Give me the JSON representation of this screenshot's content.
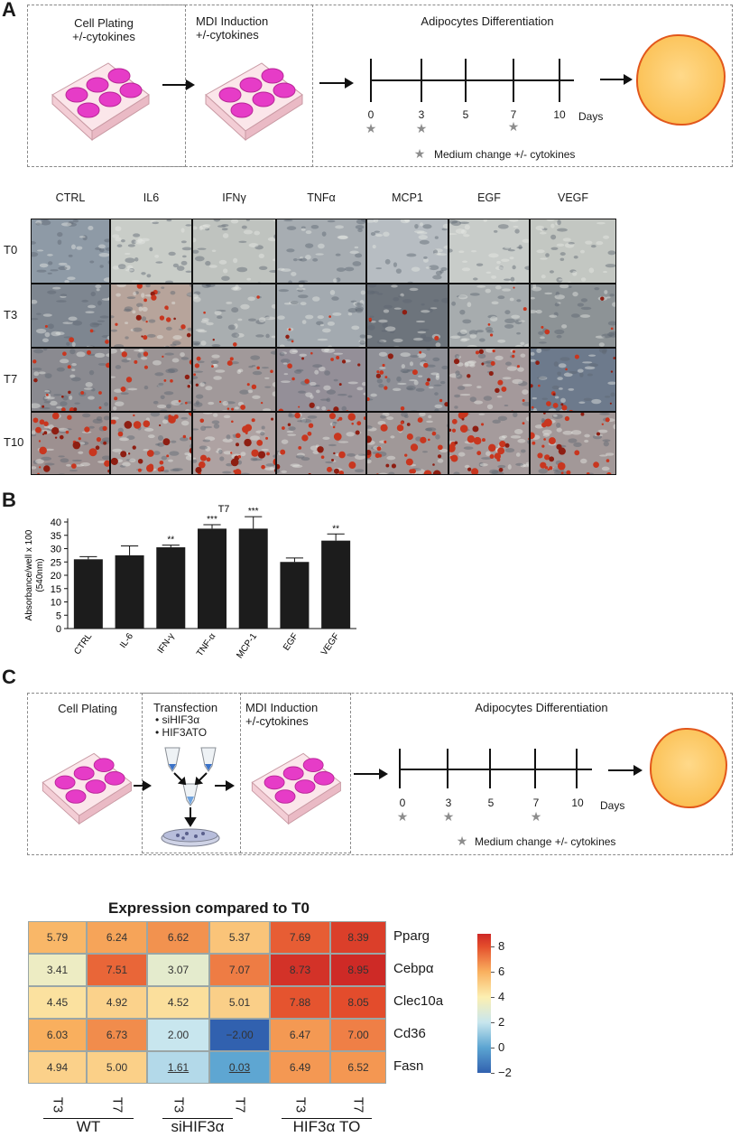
{
  "panelA": {
    "letter": "A",
    "step1": "Cell Plating\n+/-cytokines",
    "step2": "MDI Induction\n+/-cytokines",
    "step3": "Adipocytes Differentiation",
    "timeline": {
      "ticks": [
        "0",
        "3",
        "5",
        "7",
        "10"
      ],
      "unit": "Days",
      "stars_at": [
        "0",
        "3",
        "7"
      ]
    },
    "legend": "Medium change +/- cytokines",
    "columns": [
      "CTRL",
      "IL6",
      "IFNγ",
      "TNFα",
      "MCP1",
      "EGF",
      "VEGF"
    ],
    "rows": [
      "T0",
      "T3",
      "T7",
      "T10"
    ]
  },
  "panelB": {
    "letter": "B",
    "chart_data": {
      "type": "bar",
      "title": "T7",
      "ylabel": "Absorbance/well x 100\n(540nm)",
      "categories": [
        "CTRL",
        "IL-6",
        "IFN-γ",
        "TNF-α",
        "MCP-1",
        "EGF",
        "VEGF"
      ],
      "values": [
        26,
        27.5,
        30.5,
        37.5,
        37.5,
        25,
        33
      ],
      "errors": [
        1,
        3.5,
        0.8,
        1.5,
        4.5,
        1.5,
        2.5
      ],
      "significance": [
        "",
        "",
        "**",
        "***",
        "***",
        "",
        "**"
      ],
      "ylim": [
        0,
        40
      ],
      "yticks": [
        "0",
        "5",
        "10",
        "15",
        "20",
        "25",
        "30",
        "35",
        "40"
      ],
      "bar_color": "#1c1c1c"
    }
  },
  "panelC": {
    "letter": "C",
    "step1": "Cell Plating",
    "step2_title": "Transfection",
    "step2_items": [
      "siHIF3α",
      "HIF3ATO"
    ],
    "step3": "MDI Induction\n+/-cytokines",
    "step4": "Adipocytes Differentiation",
    "timeline": {
      "ticks": [
        "0",
        "3",
        "5",
        "7",
        "10"
      ],
      "unit": "Days"
    },
    "legend": "Medium change +/- cytokines"
  },
  "heatmap": {
    "title": "Expression compared to T0",
    "genes": [
      "Pparg",
      "Cebpα",
      "Clec10a",
      "Cd36",
      "Fasn"
    ],
    "columns": [
      "T3",
      "T7",
      "T3",
      "T7",
      "T3",
      "T7"
    ],
    "groups": [
      "WT",
      "siHIF3α",
      "HIF3α TO"
    ],
    "values": [
      [
        "5.79",
        "6.24",
        "6.62",
        "5.37",
        "7.69",
        "8.39"
      ],
      [
        "3.41",
        "7.51",
        "3.07",
        "7.07",
        "8.73",
        "8.95"
      ],
      [
        "4.45",
        "4.92",
        "4.52",
        "5.01",
        "7.88",
        "8.05"
      ],
      [
        "6.03",
        "6.73",
        "2.00",
        "−2.00",
        "6.47",
        "7.00"
      ],
      [
        "4.94",
        "5.00",
        "1.61",
        "0.03",
        "6.49",
        "6.52"
      ]
    ],
    "underlined": [
      [
        4,
        2
      ],
      [
        4,
        3
      ]
    ],
    "scale_ticks": [
      "8",
      "6",
      "4",
      "2",
      "0",
      "−2"
    ],
    "scale_range": [
      -2,
      9
    ]
  }
}
